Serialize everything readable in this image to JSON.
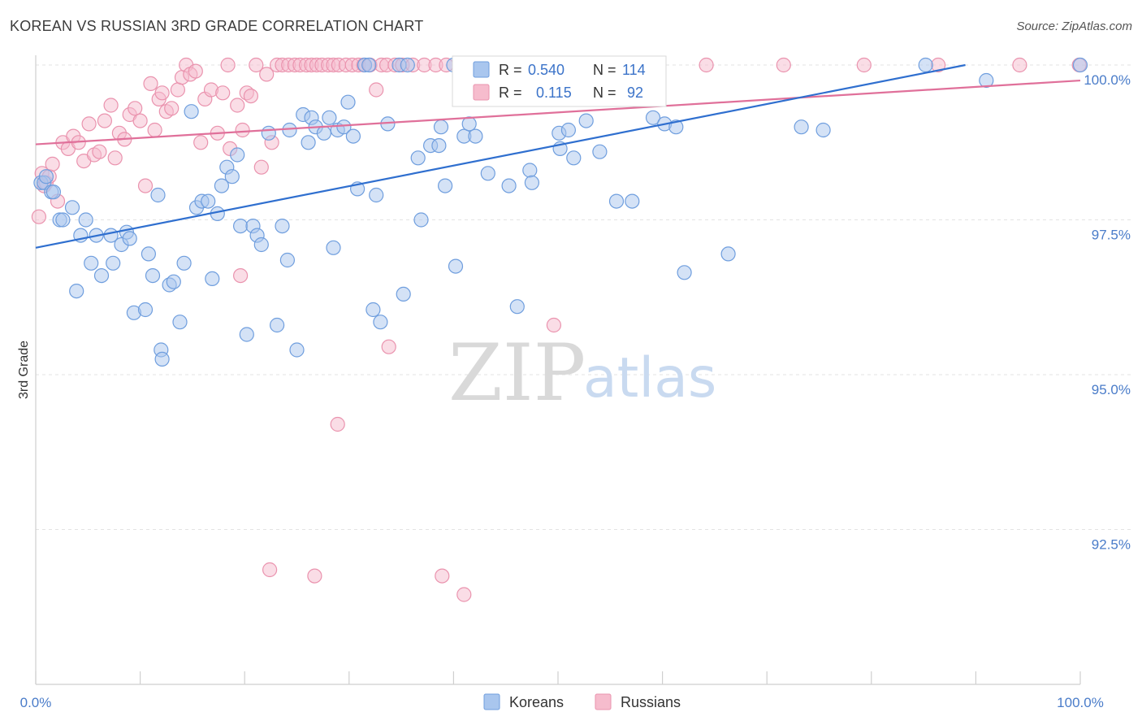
{
  "header": {
    "title": "KOREAN VS RUSSIAN 3RD GRADE CORRELATION CHART",
    "source": "Source: ZipAtlas.com"
  },
  "watermark": {
    "zip": "ZIP",
    "atlas": "atlas"
  },
  "stats": {
    "koreans": {
      "r_label": "R =",
      "r": "0.540",
      "n_label": "N =",
      "n": "114"
    },
    "russians": {
      "r_label": "R =",
      "r": "0.115",
      "n_label": "N =",
      "n": "92"
    }
  },
  "colors": {
    "koreans_fill": "#a9c6ee",
    "koreans_stroke": "#6f9ede",
    "koreans_line": "#2f6fcf",
    "russians_fill": "#f6bccd",
    "russians_stroke": "#ea93ae",
    "russians_line": "#e0709a",
    "grid": "#e3e3e3",
    "axis_label": "#4a7cc9"
  },
  "chart_data": {
    "type": "scatter",
    "title": "KOREAN VS RUSSIAN 3RD GRADE CORRELATION CHART",
    "xlabel": "",
    "ylabel": "3rd Grade",
    "xlim": [
      0,
      100
    ],
    "ylim": [
      90.7,
      100.35
    ],
    "x_tick_labels": [
      "0.0%",
      "100.0%"
    ],
    "y_ticks": [
      {
        "value": 100.0,
        "label": "100.0%"
      },
      {
        "value": 97.5,
        "label": "97.5%"
      },
      {
        "value": 95.0,
        "label": "95.0%"
      },
      {
        "value": 92.5,
        "label": "92.5%"
      }
    ],
    "grid": "horizontal dashed",
    "legend_position": "bottom-center",
    "series": [
      {
        "name": "Koreans",
        "trend": {
          "x": [
            0,
            89
          ],
          "y": [
            97.05,
            100.0
          ]
        },
        "points": [
          [
            0.5,
            98.1
          ],
          [
            0.8,
            98.1
          ],
          [
            1.0,
            98.2
          ],
          [
            1.5,
            97.95
          ],
          [
            1.7,
            97.95
          ],
          [
            2.3,
            97.5
          ],
          [
            2.6,
            97.5
          ],
          [
            3.5,
            97.7
          ],
          [
            4.3,
            97.25
          ],
          [
            4.8,
            97.5
          ],
          [
            5.3,
            96.8
          ],
          [
            5.8,
            97.25
          ],
          [
            6.3,
            96.6
          ],
          [
            7.2,
            97.25
          ],
          [
            7.4,
            96.8
          ],
          [
            8.2,
            97.1
          ],
          [
            8.7,
            97.3
          ],
          [
            9.0,
            97.2
          ],
          [
            3.9,
            96.35
          ],
          [
            9.4,
            96.0
          ],
          [
            10.5,
            96.05
          ],
          [
            10.8,
            96.95
          ],
          [
            11.2,
            96.6
          ],
          [
            11.7,
            97.9
          ],
          [
            12.0,
            95.4
          ],
          [
            12.1,
            95.25
          ],
          [
            12.8,
            96.45
          ],
          [
            13.2,
            96.5
          ],
          [
            13.8,
            95.85
          ],
          [
            14.2,
            96.8
          ],
          [
            14.9,
            99.25
          ],
          [
            15.4,
            97.7
          ],
          [
            15.9,
            97.8
          ],
          [
            16.5,
            97.8
          ],
          [
            16.9,
            96.55
          ],
          [
            17.4,
            97.6
          ],
          [
            17.8,
            98.05
          ],
          [
            18.3,
            98.35
          ],
          [
            18.8,
            98.2
          ],
          [
            19.3,
            98.55
          ],
          [
            19.6,
            97.4
          ],
          [
            20.2,
            95.65
          ],
          [
            20.8,
            97.4
          ],
          [
            21.2,
            97.25
          ],
          [
            21.6,
            97.1
          ],
          [
            22.3,
            98.9
          ],
          [
            23.1,
            95.8
          ],
          [
            23.6,
            97.4
          ],
          [
            24.1,
            96.85
          ],
          [
            24.3,
            98.95
          ],
          [
            25.0,
            95.4
          ],
          [
            25.6,
            99.2
          ],
          [
            26.1,
            98.75
          ],
          [
            26.4,
            99.15
          ],
          [
            26.8,
            99.0
          ],
          [
            27.6,
            98.9
          ],
          [
            28.1,
            99.15
          ],
          [
            28.5,
            97.05
          ],
          [
            28.9,
            98.95
          ],
          [
            29.5,
            99.0
          ],
          [
            29.9,
            99.4
          ],
          [
            30.4,
            98.85
          ],
          [
            30.8,
            98.0
          ],
          [
            31.5,
            100.0
          ],
          [
            31.9,
            100.0
          ],
          [
            32.3,
            96.05
          ],
          [
            32.6,
            97.9
          ],
          [
            33.0,
            95.85
          ],
          [
            33.7,
            99.05
          ],
          [
            34.8,
            100.0
          ],
          [
            35.2,
            96.3
          ],
          [
            35.6,
            100.0
          ],
          [
            36.6,
            98.5
          ],
          [
            36.9,
            97.5
          ],
          [
            37.8,
            98.7
          ],
          [
            38.6,
            98.7
          ],
          [
            38.8,
            99.0
          ],
          [
            39.2,
            98.05
          ],
          [
            40.0,
            100.0
          ],
          [
            40.2,
            96.75
          ],
          [
            41.0,
            98.85
          ],
          [
            41.5,
            99.05
          ],
          [
            42.1,
            98.85
          ],
          [
            43.3,
            98.25
          ],
          [
            45.3,
            98.05
          ],
          [
            46.1,
            96.1
          ],
          [
            47.3,
            98.3
          ],
          [
            47.5,
            98.1
          ],
          [
            48.5,
            100.0
          ],
          [
            50.1,
            98.9
          ],
          [
            50.2,
            98.65
          ],
          [
            51.0,
            98.95
          ],
          [
            51.5,
            98.5
          ],
          [
            52.7,
            99.1
          ],
          [
            54.0,
            98.6
          ],
          [
            55.6,
            97.8
          ],
          [
            57.1,
            97.8
          ],
          [
            59.1,
            99.15
          ],
          [
            60.2,
            99.05
          ],
          [
            61.3,
            99.0
          ],
          [
            62.1,
            96.65
          ],
          [
            66.3,
            96.95
          ],
          [
            73.3,
            99.0
          ],
          [
            75.4,
            98.95
          ],
          [
            85.2,
            100.0
          ],
          [
            91.0,
            99.75
          ],
          [
            100.0,
            100.0
          ]
        ]
      },
      {
        "name": "Russians",
        "trend": {
          "x": [
            0,
            100
          ],
          "y": [
            98.72,
            99.75
          ]
        },
        "points": [
          [
            0.3,
            97.55
          ],
          [
            0.6,
            98.25
          ],
          [
            0.8,
            98.05
          ],
          [
            1.0,
            98.1
          ],
          [
            1.3,
            98.2
          ],
          [
            1.6,
            98.4
          ],
          [
            2.1,
            97.8
          ],
          [
            2.6,
            98.75
          ],
          [
            3.1,
            98.65
          ],
          [
            3.6,
            98.85
          ],
          [
            4.1,
            98.75
          ],
          [
            4.6,
            98.45
          ],
          [
            5.1,
            99.05
          ],
          [
            5.6,
            98.55
          ],
          [
            6.1,
            98.6
          ],
          [
            6.6,
            99.1
          ],
          [
            7.2,
            99.35
          ],
          [
            7.6,
            98.5
          ],
          [
            8.0,
            98.9
          ],
          [
            8.5,
            98.8
          ],
          [
            9.0,
            99.2
          ],
          [
            9.5,
            99.3
          ],
          [
            10.0,
            99.1
          ],
          [
            10.5,
            98.05
          ],
          [
            11.0,
            99.7
          ],
          [
            11.4,
            98.95
          ],
          [
            11.8,
            99.45
          ],
          [
            12.1,
            99.55
          ],
          [
            12.5,
            99.25
          ],
          [
            13.0,
            99.3
          ],
          [
            13.6,
            99.6
          ],
          [
            14.0,
            99.8
          ],
          [
            14.4,
            100.0
          ],
          [
            14.8,
            99.85
          ],
          [
            15.3,
            99.9
          ],
          [
            15.8,
            98.75
          ],
          [
            16.2,
            99.45
          ],
          [
            16.8,
            99.6
          ],
          [
            17.4,
            98.9
          ],
          [
            17.9,
            99.55
          ],
          [
            18.4,
            100.0
          ],
          [
            18.6,
            98.65
          ],
          [
            19.3,
            99.35
          ],
          [
            19.8,
            98.95
          ],
          [
            20.2,
            99.55
          ],
          [
            20.6,
            99.5
          ],
          [
            21.1,
            100.0
          ],
          [
            21.6,
            98.35
          ],
          [
            22.1,
            99.85
          ],
          [
            22.6,
            98.75
          ],
          [
            23.1,
            100.0
          ],
          [
            23.6,
            100.0
          ],
          [
            24.2,
            100.0
          ],
          [
            24.8,
            100.0
          ],
          [
            25.3,
            100.0
          ],
          [
            25.9,
            100.0
          ],
          [
            26.4,
            100.0
          ],
          [
            26.9,
            100.0
          ],
          [
            27.4,
            100.0
          ],
          [
            28.0,
            100.0
          ],
          [
            28.5,
            100.0
          ],
          [
            29.0,
            100.0
          ],
          [
            29.7,
            100.0
          ],
          [
            30.3,
            100.0
          ],
          [
            30.9,
            100.0
          ],
          [
            31.4,
            100.0
          ],
          [
            32.0,
            100.0
          ],
          [
            32.6,
            99.6
          ],
          [
            33.1,
            100.0
          ],
          [
            33.6,
            100.0
          ],
          [
            34.4,
            100.0
          ],
          [
            35.1,
            100.0
          ],
          [
            36.1,
            100.0
          ],
          [
            37.2,
            100.0
          ],
          [
            38.3,
            100.0
          ],
          [
            39.3,
            100.0
          ],
          [
            41.5,
            100.0
          ],
          [
            45.1,
            100.0
          ],
          [
            49.6,
            100.0
          ],
          [
            51.5,
            100.0
          ],
          [
            57.3,
            100.0
          ],
          [
            64.2,
            100.0
          ],
          [
            71.6,
            100.0
          ],
          [
            79.3,
            100.0
          ],
          [
            86.4,
            100.0
          ],
          [
            94.2,
            100.0
          ],
          [
            99.9,
            100.0
          ],
          [
            19.6,
            96.6
          ],
          [
            33.8,
            95.45
          ],
          [
            49.6,
            95.8
          ],
          [
            28.9,
            94.2
          ],
          [
            22.4,
            91.85
          ],
          [
            26.7,
            91.75
          ],
          [
            38.9,
            91.75
          ],
          [
            41.0,
            91.45
          ]
        ]
      }
    ]
  },
  "legend": {
    "koreans": "Koreans",
    "russians": "Russians"
  }
}
